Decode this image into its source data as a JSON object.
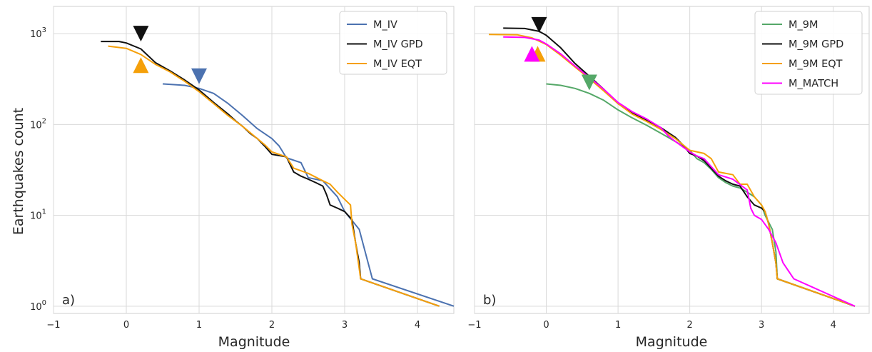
{
  "chart_data": [
    {
      "type": "line",
      "panel_label": "a)",
      "xlabel": "Magnitude",
      "ylabel": "Earthquakes count",
      "xlim": [
        -1,
        4.5
      ],
      "ylim_log10": [
        -0.08,
        3.3
      ],
      "y_scale": "log",
      "grid": true,
      "legend_position": "top-right",
      "x_ticks": [
        {
          "value": -1,
          "label": "−1"
        },
        {
          "value": 0,
          "label": "0"
        },
        {
          "value": 1,
          "label": "1"
        },
        {
          "value": 2,
          "label": "2"
        },
        {
          "value": 3,
          "label": "3"
        },
        {
          "value": 4,
          "label": "4"
        }
      ],
      "y_ticks": [
        {
          "value": 1,
          "base": "10",
          "exp": "0"
        },
        {
          "value": 10,
          "base": "10",
          "exp": "1"
        },
        {
          "value": 100,
          "base": "10",
          "exp": "2"
        },
        {
          "value": 1000,
          "base": "10",
          "exp": "3"
        }
      ],
      "series": [
        {
          "name": "M_IV",
          "color": "#4c72b0",
          "points": [
            [
              0.5,
              280
            ],
            [
              0.8,
              270
            ],
            [
              1.0,
              250
            ],
            [
              1.2,
              220
            ],
            [
              1.4,
              170
            ],
            [
              1.6,
              125
            ],
            [
              1.8,
              90
            ],
            [
              2.0,
              70
            ],
            [
              2.1,
              58
            ],
            [
              2.2,
              43
            ],
            [
              2.4,
              38
            ],
            [
              2.5,
              26
            ],
            [
              2.7,
              24
            ],
            [
              2.9,
              16
            ],
            [
              3.0,
              11
            ],
            [
              3.2,
              7
            ],
            [
              3.38,
              2
            ],
            [
              4.5,
              1
            ]
          ]
        },
        {
          "name": "M_IV GPD",
          "color": "#111111",
          "points": [
            [
              -0.35,
              820
            ],
            [
              -0.1,
              820
            ],
            [
              0.0,
              790
            ],
            [
              0.2,
              680
            ],
            [
              0.4,
              480
            ],
            [
              0.6,
              390
            ],
            [
              0.8,
              310
            ],
            [
              1.0,
              240
            ],
            [
              1.2,
              175
            ],
            [
              1.4,
              130
            ],
            [
              1.5,
              110
            ],
            [
              1.6,
              95
            ],
            [
              1.7,
              80
            ],
            [
              1.8,
              70
            ],
            [
              1.9,
              58
            ],
            [
              2.0,
              47
            ],
            [
              2.2,
              44
            ],
            [
              2.3,
              30
            ],
            [
              2.4,
              27
            ],
            [
              2.5,
              25
            ],
            [
              2.6,
              23
            ],
            [
              2.7,
              21
            ],
            [
              2.75,
              17
            ],
            [
              2.8,
              13
            ],
            [
              2.9,
              12
            ],
            [
              3.0,
              11
            ],
            [
              3.1,
              9
            ],
            [
              3.15,
              5
            ],
            [
              3.2,
              3
            ],
            [
              3.22,
              2
            ],
            [
              4.3,
              1
            ]
          ]
        },
        {
          "name": "M_IV EQT",
          "color": "#f5a00a",
          "points": [
            [
              -0.25,
              730
            ],
            [
              0.0,
              690
            ],
            [
              0.2,
              590
            ],
            [
              0.4,
              460
            ],
            [
              0.6,
              380
            ],
            [
              0.8,
              300
            ],
            [
              1.0,
              230
            ],
            [
              1.2,
              170
            ],
            [
              1.4,
              125
            ],
            [
              1.6,
              95
            ],
            [
              1.8,
              70
            ],
            [
              1.9,
              60
            ],
            [
              2.0,
              50
            ],
            [
              2.2,
              44
            ],
            [
              2.3,
              33
            ],
            [
              2.5,
              29
            ],
            [
              2.7,
              24
            ],
            [
              2.8,
              22
            ],
            [
              2.9,
              18
            ],
            [
              3.0,
              15
            ],
            [
              3.08,
              13
            ],
            [
              3.1,
              8
            ],
            [
              3.15,
              5
            ],
            [
              3.22,
              2
            ],
            [
              4.3,
              1
            ]
          ]
        }
      ],
      "markers": [
        {
          "series": "M_IV GPD",
          "shape": "triangle-down",
          "x": 0.2,
          "y": 1000,
          "color": "#111111"
        },
        {
          "series": "M_IV EQT",
          "shape": "triangle-up",
          "x": 0.2,
          "y": 450,
          "color": "#f5a00a"
        },
        {
          "series": "M_IV",
          "shape": "triangle-down",
          "x": 1.0,
          "y": 340,
          "color": "#4c72b0"
        }
      ]
    },
    {
      "type": "line",
      "panel_label": "b)",
      "xlabel": "Magnitude",
      "ylabel": "",
      "xlim": [
        -1,
        4.5
      ],
      "ylim_log10": [
        -0.08,
        3.3
      ],
      "y_scale": "log",
      "grid": true,
      "legend_position": "top-right",
      "x_ticks": [
        {
          "value": -1,
          "label": "−1"
        },
        {
          "value": 0,
          "label": "0"
        },
        {
          "value": 1,
          "label": "1"
        },
        {
          "value": 2,
          "label": "2"
        },
        {
          "value": 3,
          "label": "3"
        },
        {
          "value": 4,
          "label": "4"
        }
      ],
      "y_ticks": [],
      "series": [
        {
          "name": "M_9M",
          "color": "#55a868",
          "points": [
            [
              0.0,
              280
            ],
            [
              0.2,
              270
            ],
            [
              0.4,
              250
            ],
            [
              0.6,
              220
            ],
            [
              0.8,
              185
            ],
            [
              1.0,
              145
            ],
            [
              1.2,
              118
            ],
            [
              1.4,
              98
            ],
            [
              1.6,
              80
            ],
            [
              1.8,
              65
            ],
            [
              2.0,
              52
            ],
            [
              2.1,
              42
            ],
            [
              2.2,
              38
            ],
            [
              2.3,
              32
            ],
            [
              2.4,
              26
            ],
            [
              2.5,
              23
            ],
            [
              2.6,
              21
            ],
            [
              2.7,
              20
            ],
            [
              2.8,
              18
            ],
            [
              2.9,
              16
            ],
            [
              3.0,
              13
            ],
            [
              3.05,
              10
            ],
            [
              3.15,
              7
            ],
            [
              3.2,
              4
            ],
            [
              3.22,
              2
            ],
            [
              4.3,
              1
            ]
          ]
        },
        {
          "name": "M_9M GPD",
          "color": "#111111",
          "points": [
            [
              -0.6,
              1150
            ],
            [
              -0.3,
              1140
            ],
            [
              -0.1,
              1060
            ],
            [
              0.0,
              960
            ],
            [
              0.2,
              700
            ],
            [
              0.4,
              470
            ],
            [
              0.6,
              340
            ],
            [
              0.8,
              245
            ],
            [
              1.0,
              170
            ],
            [
              1.2,
              135
            ],
            [
              1.4,
              112
            ],
            [
              1.6,
              92
            ],
            [
              1.8,
              72
            ],
            [
              1.9,
              60
            ],
            [
              2.0,
              48
            ],
            [
              2.1,
              45
            ],
            [
              2.2,
              40
            ],
            [
              2.4,
              27
            ],
            [
              2.5,
              24
            ],
            [
              2.6,
              22
            ],
            [
              2.7,
              21
            ],
            [
              2.8,
              16
            ],
            [
              2.9,
              13
            ],
            [
              3.0,
              12
            ],
            [
              3.05,
              11
            ],
            [
              3.1,
              8
            ],
            [
              3.15,
              5
            ],
            [
              3.2,
              3
            ],
            [
              3.22,
              2
            ],
            [
              4.3,
              1
            ]
          ]
        },
        {
          "name": "M_9M EQT",
          "color": "#f5a00a",
          "points": [
            [
              -0.8,
              980
            ],
            [
              -0.4,
              970
            ],
            [
              -0.2,
              900
            ],
            [
              0.0,
              760
            ],
            [
              0.2,
              580
            ],
            [
              0.4,
              430
            ],
            [
              0.6,
              320
            ],
            [
              0.8,
              235
            ],
            [
              1.0,
              170
            ],
            [
              1.2,
              130
            ],
            [
              1.4,
              108
            ],
            [
              1.6,
              88
            ],
            [
              1.8,
              70
            ],
            [
              2.0,
              52
            ],
            [
              2.2,
              48
            ],
            [
              2.3,
              42
            ],
            [
              2.4,
              30
            ],
            [
              2.6,
              28
            ],
            [
              2.7,
              22
            ],
            [
              2.8,
              22
            ],
            [
              2.9,
              16
            ],
            [
              3.0,
              13
            ],
            [
              3.05,
              11
            ],
            [
              3.1,
              8
            ],
            [
              3.15,
              5
            ],
            [
              3.2,
              3
            ],
            [
              3.22,
              2
            ],
            [
              4.3,
              1
            ]
          ]
        },
        {
          "name": "M_MATCH",
          "color": "#ff00ff",
          "points": [
            [
              -0.6,
              920
            ],
            [
              -0.3,
              910
            ],
            [
              -0.1,
              850
            ],
            [
              0.0,
              770
            ],
            [
              0.2,
              600
            ],
            [
              0.4,
              440
            ],
            [
              0.6,
              330
            ],
            [
              0.8,
              245
            ],
            [
              1.0,
              175
            ],
            [
              1.2,
              138
            ],
            [
              1.4,
              115
            ],
            [
              1.6,
              92
            ],
            [
              1.7,
              75
            ],
            [
              1.8,
              65
            ],
            [
              2.0,
              50
            ],
            [
              2.1,
              45
            ],
            [
              2.2,
              42
            ],
            [
              2.4,
              28
            ],
            [
              2.6,
              25
            ],
            [
              2.8,
              19
            ],
            [
              2.85,
              12
            ],
            [
              2.9,
              10
            ],
            [
              3.0,
              9
            ],
            [
              3.1,
              7
            ],
            [
              3.2,
              5
            ],
            [
              3.3,
              3
            ],
            [
              3.45,
              2
            ],
            [
              4.3,
              1
            ]
          ]
        }
      ],
      "markers": [
        {
          "series": "M_9M GPD",
          "shape": "triangle-down",
          "x": -0.1,
          "y": 1250,
          "color": "#111111"
        },
        {
          "series": "M_9M EQT",
          "shape": "triangle-up",
          "x": -0.12,
          "y": 600,
          "color": "#f5a00a"
        },
        {
          "series": "M_MATCH",
          "shape": "triangle-up",
          "x": -0.2,
          "y": 600,
          "color": "#ff00ff"
        },
        {
          "series": "M_9M",
          "shape": "triangle-down",
          "x": 0.6,
          "y": 290,
          "color": "#55a868"
        }
      ]
    }
  ]
}
